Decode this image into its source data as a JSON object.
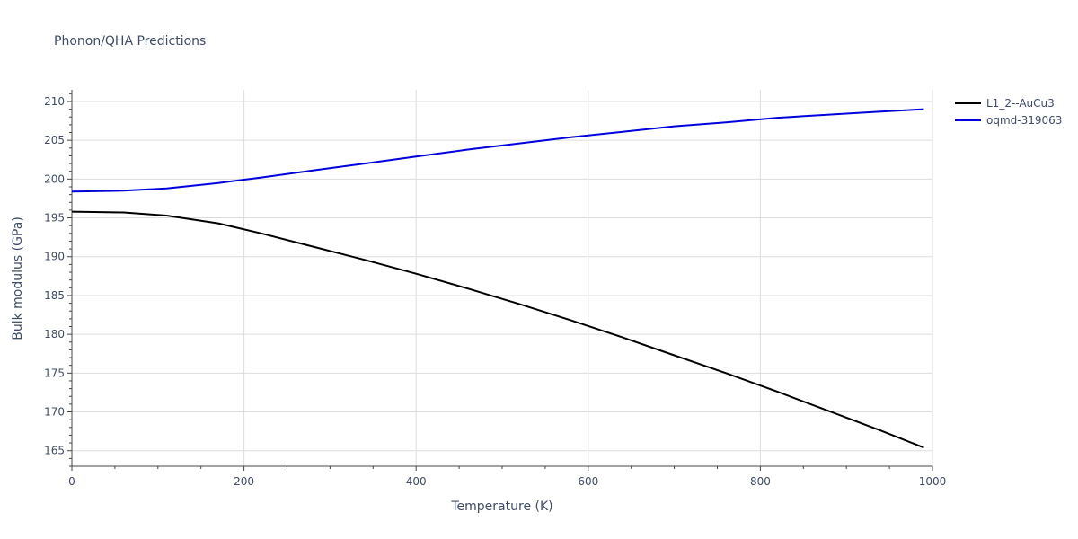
{
  "chart_data": {
    "type": "line",
    "title": "Phonon/QHA Predictions",
    "xlabel": "Temperature (K)",
    "ylabel": "Bulk modulus (GPa)",
    "xlim": [
      0,
      1000
    ],
    "ylim": [
      163,
      211.5
    ],
    "x_ticks": [
      0,
      200,
      400,
      600,
      800,
      1000
    ],
    "y_ticks": [
      165,
      170,
      175,
      180,
      185,
      190,
      195,
      200,
      205,
      210
    ],
    "grid": true,
    "legend_position": "top-right",
    "series": [
      {
        "name": "L1_2--AuCu3",
        "color": "#000000",
        "x": [
          0,
          60,
          110,
          170,
          220,
          280,
          340,
          400,
          460,
          520,
          580,
          640,
          700,
          760,
          820,
          880,
          940,
          990
        ],
        "y": [
          195.8,
          195.7,
          195.3,
          194.3,
          193.0,
          191.3,
          189.6,
          187.8,
          185.9,
          183.9,
          181.8,
          179.6,
          177.3,
          175.0,
          172.6,
          170.1,
          167.6,
          165.4
        ]
      },
      {
        "name": "oqmd-319063",
        "color": "#0000dd",
        "x": [
          0,
          60,
          110,
          170,
          220,
          280,
          340,
          400,
          460,
          520,
          580,
          640,
          700,
          760,
          820,
          880,
          940,
          990
        ],
        "y": [
          198.4,
          198.5,
          198.8,
          199.5,
          200.2,
          201.1,
          202.0,
          202.9,
          203.8,
          204.6,
          205.4,
          206.1,
          206.8,
          207.3,
          207.9,
          208.3,
          208.7,
          209.0
        ]
      }
    ]
  }
}
